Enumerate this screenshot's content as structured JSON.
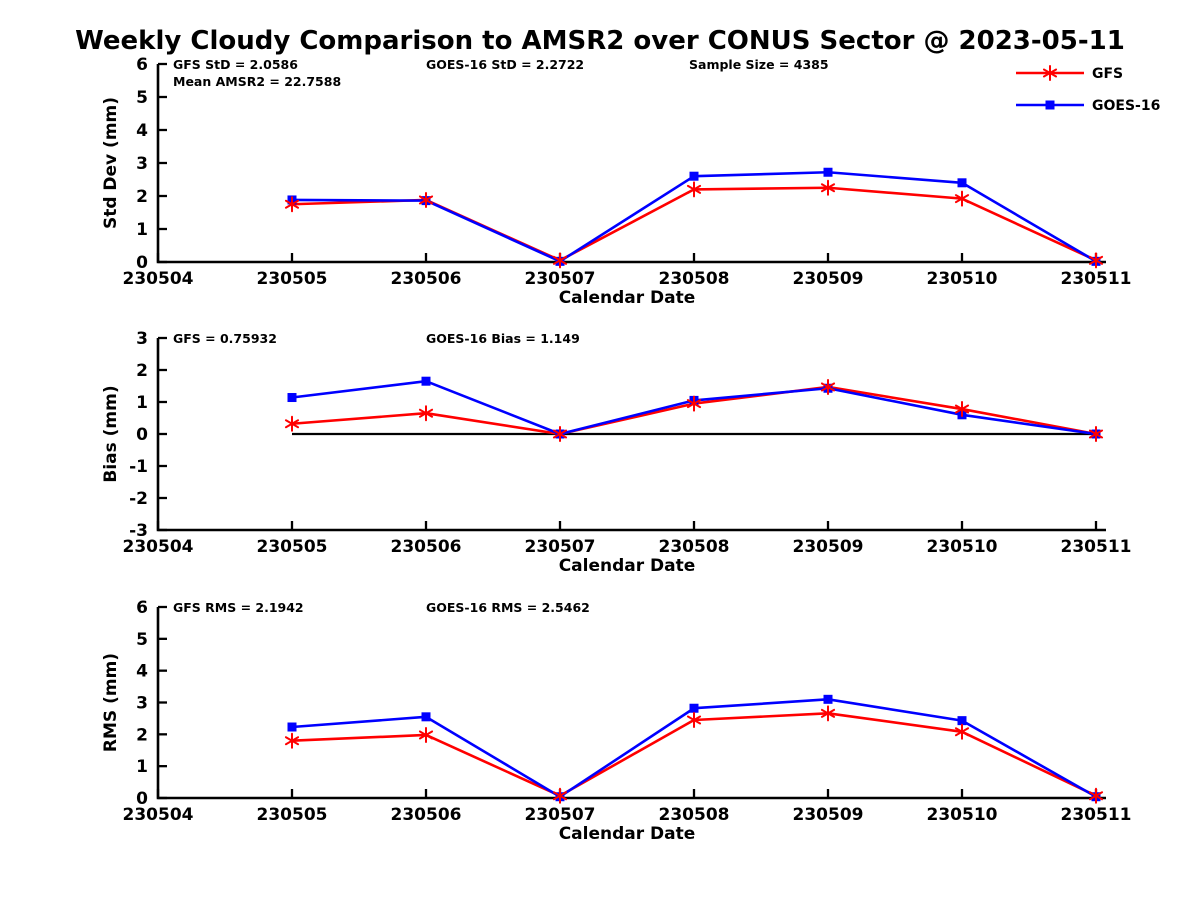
{
  "title": "Weekly Cloudy Comparison to AMSR2 over CONUS Sector @ 2023-05-11",
  "colors": {
    "gfs": "#ff0000",
    "goes16": "#0000ff",
    "axis": "#000000",
    "zero_line": "#000000"
  },
  "legend": {
    "position": "top-right",
    "entries": [
      {
        "label": "GFS",
        "color": "#ff0000",
        "marker": "asterisk"
      },
      {
        "label": "GOES-16",
        "color": "#0000ff",
        "marker": "square"
      }
    ]
  },
  "chart_data": [
    {
      "type": "line",
      "id": "stddev",
      "ylabel": "Std Dev (mm)",
      "xlabel": "Calendar Date",
      "ylim": [
        0,
        6
      ],
      "ytick_step": 1,
      "grid": false,
      "zero_line": false,
      "categories": [
        "230504",
        "230505",
        "230506",
        "230507",
        "230508",
        "230509",
        "230510",
        "230511"
      ],
      "annotations": [
        {
          "slot": "left",
          "row": 0,
          "text": "GFS StD = 2.0586"
        },
        {
          "slot": "left",
          "row": 1,
          "text": "Mean AMSR2 = 22.7588"
        },
        {
          "slot": "center",
          "row": 0,
          "text": "GOES-16 StD = 2.2722"
        },
        {
          "slot": "right",
          "row": 0,
          "text": "Sample Size = 4385"
        }
      ],
      "series": [
        {
          "name": "GFS",
          "marker": "asterisk",
          "values": [
            null,
            1.75,
            1.88,
            0.05,
            2.2,
            2.25,
            1.92,
            0.05
          ]
        },
        {
          "name": "GOES-16",
          "marker": "square",
          "values": [
            null,
            1.88,
            1.86,
            0.02,
            2.6,
            2.72,
            2.4,
            0.02
          ]
        }
      ]
    },
    {
      "type": "line",
      "id": "bias",
      "ylabel": "Bias (mm)",
      "xlabel": "Calendar Date",
      "ylim": [
        -3,
        3
      ],
      "ytick_step": 1,
      "grid": false,
      "zero_line": true,
      "categories": [
        "230504",
        "230505",
        "230506",
        "230507",
        "230508",
        "230509",
        "230510",
        "230511"
      ],
      "annotations": [
        {
          "slot": "left",
          "row": 0,
          "text": "GFS = 0.75932"
        },
        {
          "slot": "center",
          "row": 0,
          "text": "GOES-16 Bias  = 1.149"
        }
      ],
      "series": [
        {
          "name": "GFS",
          "marker": "asterisk",
          "values": [
            null,
            0.32,
            0.65,
            0.0,
            0.95,
            1.47,
            0.78,
            0.0
          ]
        },
        {
          "name": "GOES-16",
          "marker": "square",
          "values": [
            null,
            1.14,
            1.65,
            0.0,
            1.05,
            1.43,
            0.6,
            0.0
          ]
        }
      ]
    },
    {
      "type": "line",
      "id": "rms",
      "ylabel": "RMS (mm)",
      "xlabel": "Calendar Date",
      "ylim": [
        0,
        6
      ],
      "ytick_step": 1,
      "grid": false,
      "zero_line": false,
      "categories": [
        "230504",
        "230505",
        "230506",
        "230507",
        "230508",
        "230509",
        "230510",
        "230511"
      ],
      "annotations": [
        {
          "slot": "left",
          "row": 0,
          "text": "GFS RMS = 2.1942"
        },
        {
          "slot": "center",
          "row": 0,
          "text": "GOES-16 RMS = 2.5462"
        }
      ],
      "series": [
        {
          "name": "GFS",
          "marker": "asterisk",
          "values": [
            null,
            1.8,
            1.98,
            0.07,
            2.45,
            2.66,
            2.08,
            0.07
          ]
        },
        {
          "name": "GOES-16",
          "marker": "square",
          "values": [
            null,
            2.23,
            2.55,
            0.04,
            2.82,
            3.1,
            2.43,
            0.04
          ]
        }
      ]
    }
  ]
}
